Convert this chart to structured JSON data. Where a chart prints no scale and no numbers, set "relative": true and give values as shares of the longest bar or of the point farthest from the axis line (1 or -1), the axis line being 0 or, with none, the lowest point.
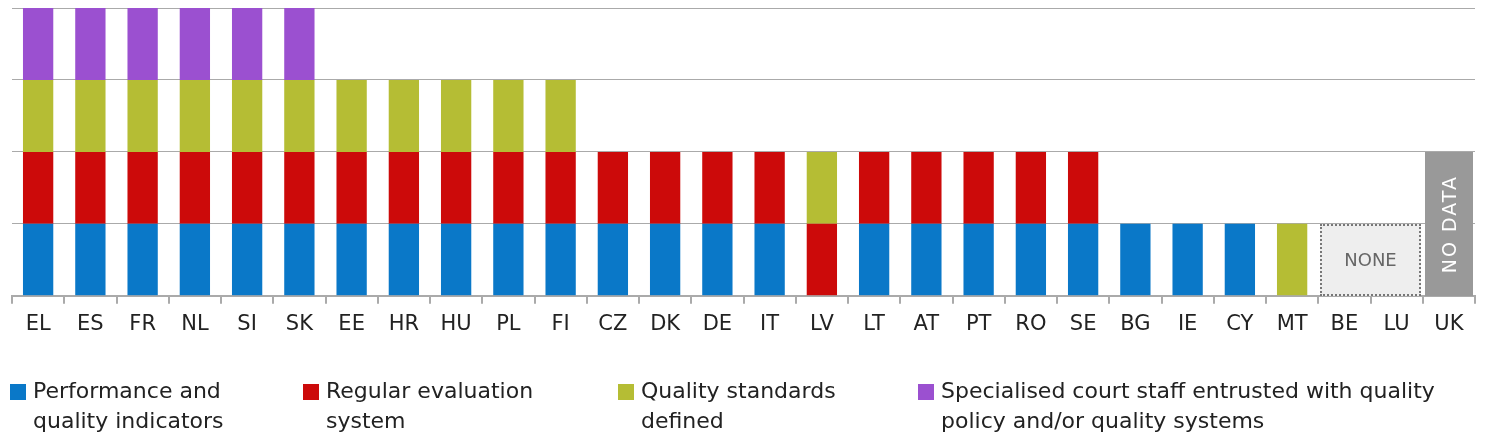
{
  "chart_data": {
    "type": "bar",
    "stacked": true,
    "relative": true,
    "grid": "y",
    "legend": "bottom",
    "categories": [
      "EL",
      "ES",
      "FR",
      "NL",
      "SI",
      "SK",
      "EE",
      "HR",
      "HU",
      "PL",
      "FI",
      "CZ",
      "DK",
      "DE",
      "IT",
      "LV",
      "LT",
      "AT",
      "PT",
      "RO",
      "SE",
      "BG",
      "IE",
      "CY",
      "MT",
      "BE",
      "LU",
      "UK"
    ],
    "series": [
      {
        "name": "Performance and quality indicators",
        "color": "#0a78c8",
        "values": [
          0.25,
          0.25,
          0.25,
          0.25,
          0.25,
          0.25,
          0.25,
          0.25,
          0.25,
          0.25,
          0.25,
          0.25,
          0.25,
          0.25,
          0.25,
          0,
          0.25,
          0.25,
          0.25,
          0.25,
          0.25,
          0.25,
          0.25,
          0.25,
          0,
          0,
          0,
          0
        ]
      },
      {
        "name": "Regular evaluation system",
        "color": "#cc0a0a",
        "values": [
          0.25,
          0.25,
          0.25,
          0.25,
          0.25,
          0.25,
          0.25,
          0.25,
          0.25,
          0.25,
          0.25,
          0.25,
          0.25,
          0.25,
          0.25,
          0.25,
          0.25,
          0.25,
          0.25,
          0.25,
          0.25,
          0,
          0,
          0,
          0,
          0,
          0,
          0
        ]
      },
      {
        "name": "Quality standards defined",
        "color": "#b5bd34",
        "values": [
          0.25,
          0.25,
          0.25,
          0.25,
          0.25,
          0.25,
          0.25,
          0.25,
          0.25,
          0.25,
          0.25,
          0,
          0,
          0,
          0,
          0.25,
          0,
          0,
          0,
          0,
          0,
          0,
          0,
          0,
          0.25,
          0,
          0,
          0
        ]
      },
      {
        "name": "Specialised court staff entrusted with quality policy and/or quality systems",
        "color": "#9b50d0",
        "values": [
          0.25,
          0.25,
          0.25,
          0.25,
          0.25,
          0.25,
          0,
          0,
          0,
          0,
          0,
          0,
          0,
          0,
          0,
          0,
          0,
          0,
          0,
          0,
          0,
          0,
          0,
          0,
          0,
          0,
          0,
          0
        ]
      }
    ],
    "annotations": [
      "NONE",
      "NO DATA"
    ]
  }
}
